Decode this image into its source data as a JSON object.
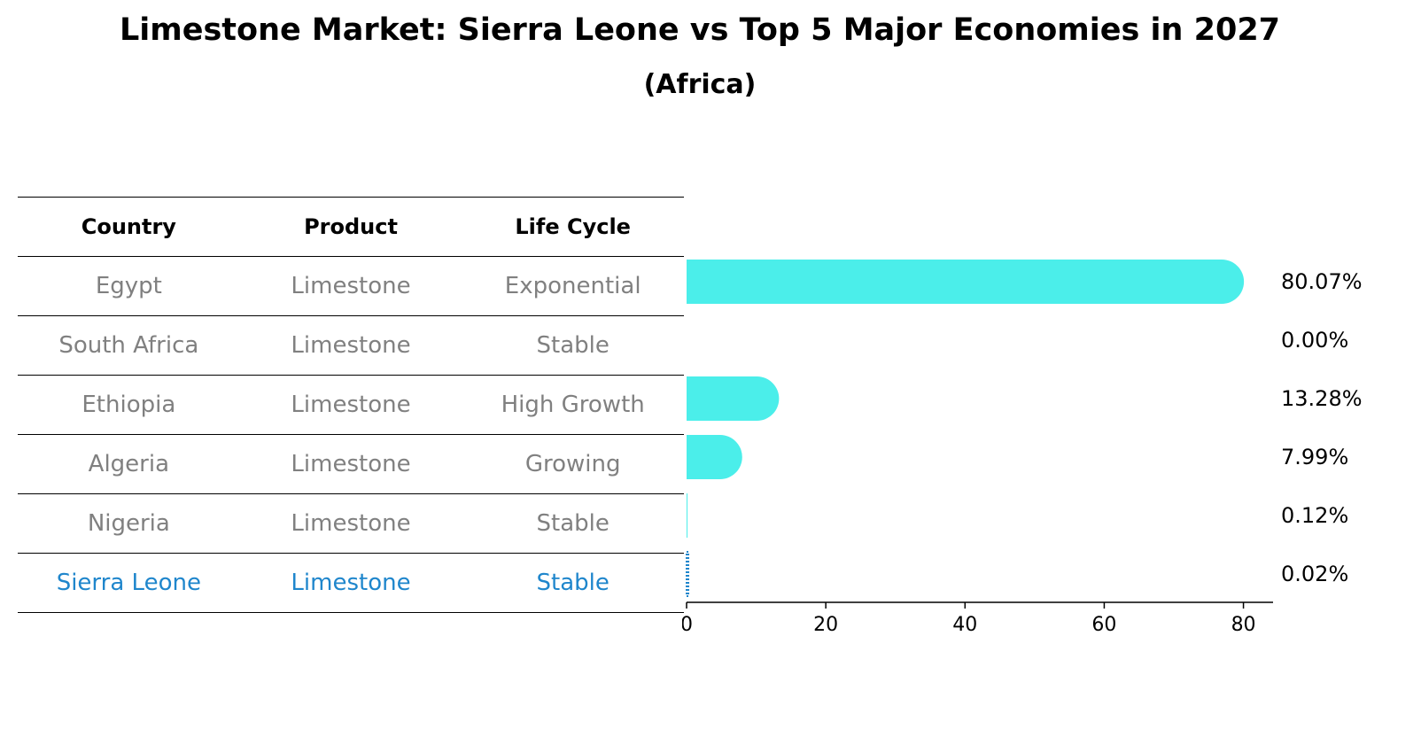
{
  "title": "Limestone Market: Sierra Leone vs Top 5 Major Economies in 2027",
  "subtitle": "(Africa)",
  "table": {
    "headers": [
      "Country",
      "Product",
      "Life Cycle"
    ],
    "rows": [
      {
        "country": "Egypt",
        "product": "Limestone",
        "life_cycle": "Exponential"
      },
      {
        "country": "South Africa",
        "product": "Limestone",
        "life_cycle": "Stable"
      },
      {
        "country": "Ethiopia",
        "product": "Limestone",
        "life_cycle": "High Growth"
      },
      {
        "country": "Algeria",
        "product": "Limestone",
        "life_cycle": "Growing"
      },
      {
        "country": "Nigeria",
        "product": "Limestone",
        "life_cycle": "Stable"
      },
      {
        "country": "Sierra Leone",
        "product": "Limestone",
        "life_cycle": "Stable"
      }
    ]
  },
  "chart_data": {
    "type": "bar",
    "orientation": "horizontal",
    "categories": [
      "Egypt",
      "South Africa",
      "Ethiopia",
      "Algeria",
      "Nigeria",
      "Sierra Leone"
    ],
    "values": [
      80.07,
      0.0,
      13.28,
      7.99,
      0.12,
      0.02
    ],
    "data_labels": [
      "80.07%",
      "0.00%",
      "13.28%",
      "7.99%",
      "0.12%",
      "0.02%"
    ],
    "xticks": [
      0,
      20,
      40,
      60,
      80
    ],
    "xlim": [
      0,
      84
    ],
    "grid": false,
    "colors": {
      "bar": "#4beeea",
      "highlight_bar": "#1f86cc",
      "highlight_text": "#1f86cc",
      "muted_text": "#808080"
    }
  }
}
